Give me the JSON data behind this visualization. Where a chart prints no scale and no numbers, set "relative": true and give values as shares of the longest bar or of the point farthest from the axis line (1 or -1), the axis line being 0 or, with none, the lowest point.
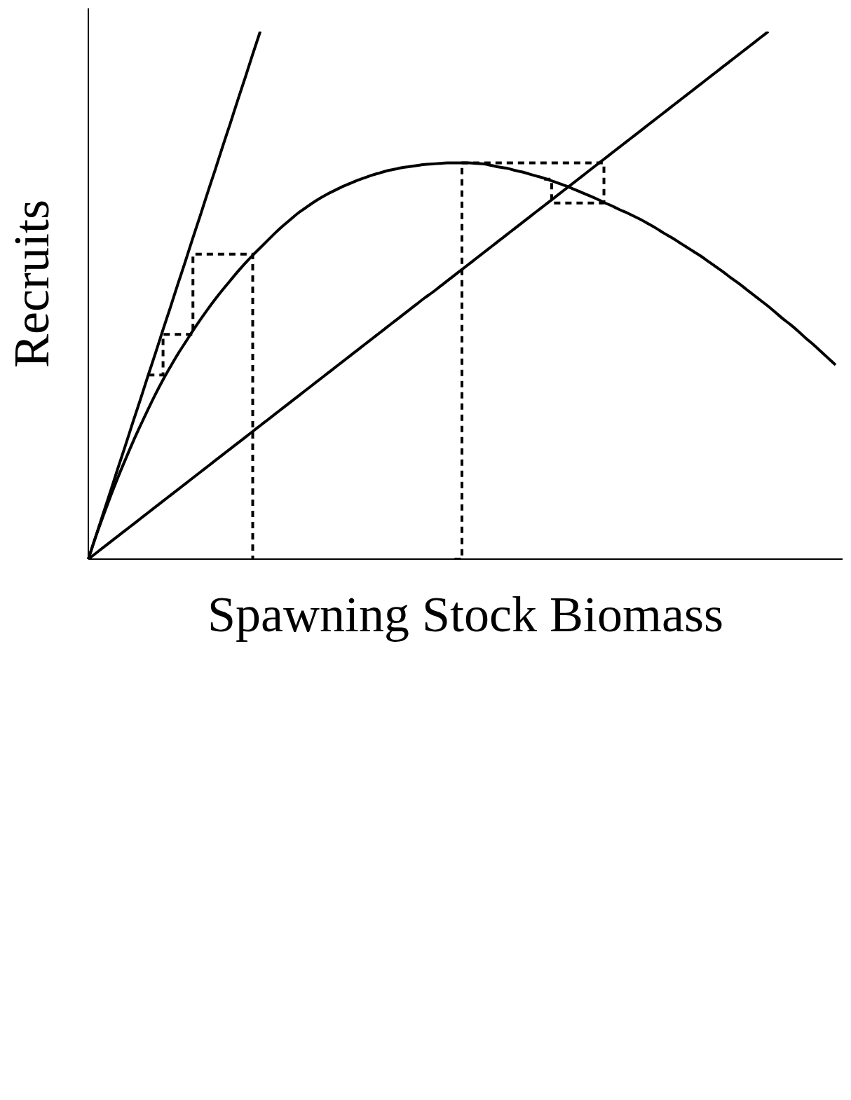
{
  "chart_data": {
    "type": "line",
    "xlabel": "Spawning Stock Biomass",
    "ylabel": "Recruits",
    "relative": true,
    "categories": [
      null,
      null,
      null,
      null,
      null,
      null,
      null,
      null,
      null,
      null,
      null,
      null,
      null,
      null,
      null,
      null,
      null,
      null,
      null,
      null,
      null,
      null,
      null,
      null,
      null,
      null,
      null,
      null,
      null,
      null,
      null,
      null,
      null,
      null,
      null,
      null,
      null,
      null,
      null,
      null,
      null,
      null,
      null,
      null,
      null,
      null,
      null,
      null,
      null,
      null,
      null,
      null,
      null,
      null,
      null,
      null,
      null,
      null,
      null,
      null,
      null,
      null,
      null,
      null,
      null,
      null,
      null,
      null,
      null,
      null,
      null,
      null,
      null,
      null,
      null,
      null,
      null,
      null,
      null,
      null,
      null,
      null,
      null,
      null,
      null,
      null,
      null,
      null,
      null,
      null,
      null,
      null,
      null,
      null,
      null,
      null,
      null,
      null,
      null,
      null,
      null
    ],
    "series": [
      {
        "color": "#000000",
        "values": [
          0,
          0.043,
          0.087,
          0.13,
          0.174,
          0.217,
          0.261,
          0.304,
          0.348,
          0.391,
          0.435,
          0.478,
          0.522,
          0.565,
          0.609,
          0.652,
          0.696,
          0.739,
          0.783,
          0.826,
          0.87,
          0.913,
          0.957,
          1,
          null,
          null,
          null,
          null,
          null,
          null,
          null,
          null,
          null,
          null,
          null,
          null,
          null,
          null,
          null,
          null,
          null,
          null,
          null,
          null,
          null,
          null,
          null,
          null,
          null,
          null,
          null,
          null,
          null,
          null,
          null,
          null,
          null,
          null,
          null,
          null,
          null,
          null,
          null,
          null,
          null,
          null,
          null,
          null,
          null,
          null,
          null,
          null,
          null,
          null,
          null,
          null,
          null,
          null,
          null,
          null,
          null,
          null,
          null,
          null,
          null,
          null,
          null,
          null,
          null,
          null,
          null,
          null,
          null,
          null,
          null,
          null,
          null,
          null,
          null,
          null,
          null
        ]
      },
      {
        "color": "#000000",
        "values": [
          0,
          0.011,
          0.022,
          0.033,
          0.044,
          0.055,
          0.066,
          0.077,
          0.088,
          0.099,
          0.11,
          0.121,
          0.132,
          0.143,
          0.154,
          0.165,
          0.176,
          0.187,
          0.198,
          0.209,
          0.22,
          0.231,
          0.242,
          0.253,
          0.264,
          0.275,
          0.286,
          0.297,
          0.308,
          0.319,
          0.33,
          0.341,
          0.352,
          0.363,
          0.374,
          0.385,
          0.396,
          0.407,
          0.418,
          0.429,
          0.44,
          0.451,
          0.462,
          0.473,
          0.484,
          0.495,
          0.505,
          0.516,
          0.527,
          0.538,
          0.549,
          0.56,
          0.571,
          0.582,
          0.593,
          0.604,
          0.615,
          0.626,
          0.637,
          0.648,
          0.659,
          0.67,
          0.681,
          0.692,
          0.703,
          0.714,
          0.725,
          0.736,
          0.747,
          0.758,
          0.769,
          0.78,
          0.791,
          0.802,
          0.813,
          0.824,
          0.835,
          0.846,
          0.857,
          0.868,
          0.879,
          0.89,
          0.901,
          0.912,
          0.923,
          0.934,
          0.945,
          0.956,
          0.967,
          0.978,
          0.989,
          1,
          null,
          null,
          null,
          null,
          null,
          null,
          null,
          null,
          null
        ]
      },
      {
        "color": "#000000",
        "values": [
          0,
          0.043,
          0.082,
          0.12,
          0.156,
          0.19,
          0.223,
          0.254,
          0.284,
          0.313,
          0.34,
          0.365,
          0.389,
          0.411,
          0.433,
          0.454,
          0.474,
          0.493,
          0.511,
          0.528,
          0.545,
          0.561,
          0.576,
          0.59,
          0.604,
          0.618,
          0.631,
          0.643,
          0.655,
          0.665,
          0.675,
          0.684,
          0.692,
          0.699,
          0.706,
          0.712,
          0.718,
          0.723,
          0.728,
          0.732,
          0.736,
          0.739,
          0.742,
          0.744,
          0.746,
          0.748,
          0.749,
          0.75,
          0.751,
          0.751,
          0.751,
          0.751,
          0.75,
          0.749,
          0.746,
          0.743,
          0.741,
          0.737,
          0.734,
          0.73,
          0.726,
          0.722,
          0.717,
          0.712,
          0.707,
          0.701,
          0.695,
          0.689,
          0.683,
          0.676,
          0.67,
          0.663,
          0.657,
          0.65,
          0.643,
          0.635,
          0.627,
          0.618,
          0.61,
          0.601,
          0.592,
          0.583,
          0.574,
          0.564,
          0.554,
          0.544,
          0.533,
          0.523,
          0.512,
          0.501,
          0.49,
          0.479,
          0.467,
          0.455,
          0.444,
          0.432,
          0.419,
          0.407,
          0.394,
          0.381,
          0.368
        ]
      },
      {
        "type": "step",
        "color": "#000000",
        "line_style": "dashed",
        "values": [
          null,
          null,
          null,
          null,
          null,
          null,
          null,
          null,
          null,
          null,
          null,
          null,
          null,
          null,
          null,
          null,
          null,
          null,
          null,
          null,
          null,
          null,
          null,
          null,
          null,
          null,
          null,
          null,
          null,
          null,
          null,
          null,
          null,
          null,
          null,
          null,
          null,
          null,
          null,
          null,
          null,
          null,
          null,
          null,
          null,
          null,
          null,
          null,
          null,
          0,
          0.751,
          0.751,
          0.751,
          0.751,
          0.751,
          0.751,
          0.751,
          0.751,
          0.751,
          0.751,
          0.751,
          0.751,
          0.751,
          0.751,
          0.751,
          0.751,
          0.751,
          0.751,
          0.751,
          0.675,
          null,
          null,
          null,
          null,
          null,
          null,
          null,
          null,
          null,
          null,
          null,
          null,
          null,
          null,
          null,
          null,
          null,
          null,
          null,
          null,
          null,
          null,
          null,
          null,
          null,
          null,
          null,
          null,
          null,
          null,
          null
        ]
      },
      {
        "type": "step",
        "color": "#000000",
        "line_style": "dashed",
        "values": [
          null,
          null,
          null,
          null,
          null,
          null,
          null,
          null,
          null,
          null,
          null,
          null,
          null,
          null,
          null,
          null,
          null,
          null,
          null,
          null,
          null,
          null,
          null,
          null,
          null,
          null,
          null,
          null,
          null,
          null,
          null,
          null,
          null,
          null,
          null,
          null,
          null,
          null,
          null,
          null,
          null,
          null,
          null,
          null,
          null,
          null,
          null,
          null,
          null,
          null,
          null,
          null,
          null,
          null,
          null,
          null,
          null,
          null,
          null,
          null,
          null,
          0.72,
          0.675,
          0.675,
          0.675,
          0.675,
          0.675,
          0.675,
          0.675,
          0.675,
          null,
          null,
          null,
          null,
          null,
          null,
          null,
          null,
          null,
          null,
          null,
          null,
          null,
          null,
          null,
          null,
          null,
          null,
          null,
          null,
          null,
          null,
          null,
          null,
          null,
          null,
          null,
          null,
          null,
          null,
          null
        ]
      },
      {
        "type": "step",
        "color": "#000000",
        "line_style": "dashed",
        "values": [
          null,
          null,
          null,
          null,
          null,
          null,
          null,
          null,
          0.349,
          0.349,
          0.426,
          0.426,
          0.426,
          0.426,
          0.578,
          0.578,
          0.578,
          0.578,
          0.578,
          0.578,
          0.578,
          0.578,
          0,
          null,
          null,
          null,
          null,
          null,
          null,
          null,
          null,
          null,
          null,
          null,
          null,
          null,
          null,
          null,
          null,
          null,
          null,
          null,
          null,
          null,
          null,
          null,
          null,
          null,
          null,
          null,
          null,
          null,
          null,
          null,
          null,
          null,
          null,
          null,
          null,
          null,
          null,
          null,
          null,
          null,
          null,
          null,
          null,
          null,
          null,
          null,
          null,
          null,
          null,
          null,
          null,
          null,
          null,
          null,
          null,
          null,
          null,
          null,
          null,
          null,
          null,
          null,
          null,
          null,
          null,
          null,
          null,
          null,
          null,
          null,
          null,
          null,
          null,
          null,
          null,
          null,
          null
        ]
      }
    ]
  }
}
